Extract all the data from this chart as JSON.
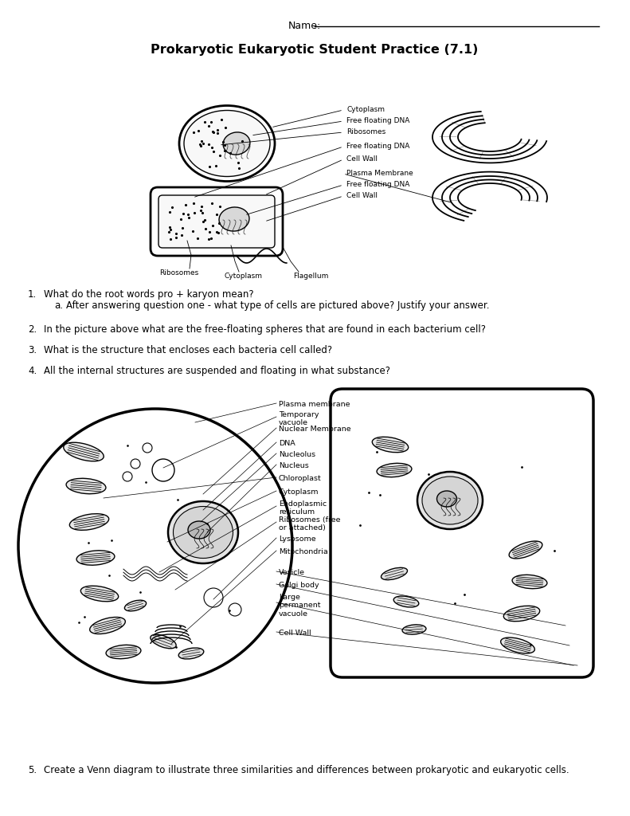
{
  "title": "Prokaryotic Eukaryotic Student Practice (7.1)",
  "name_label": "Name:",
  "questions": [
    {
      "num": "1.",
      "text": "What do the root words pro + karyon mean?",
      "sub": [
        {
          "letter": "a.",
          "text": "After answering question one - what type of cells are pictured above? Justify your answer."
        }
      ]
    },
    {
      "num": "2.",
      "text": "In the picture above what are the free-floating spheres that are found in each bacterium cell?",
      "sub": []
    },
    {
      "num": "3.",
      "text": "What is the structure that encloses each bacteria cell called?",
      "sub": []
    },
    {
      "num": "4.",
      "text": "All the internal structures are suspended and floating in what substance?",
      "sub": []
    },
    {
      "num": "5.",
      "text": "Create a Venn diagram to illustrate three similarities and differences between prokaryotic and eukaryotic cells.",
      "sub": []
    }
  ],
  "bg_color": "#ffffff",
  "text_color": "#000000",
  "font_size_title": 11.5,
  "font_size_body": 8.5,
  "font_size_label": 6.5,
  "font_size_name": 9
}
